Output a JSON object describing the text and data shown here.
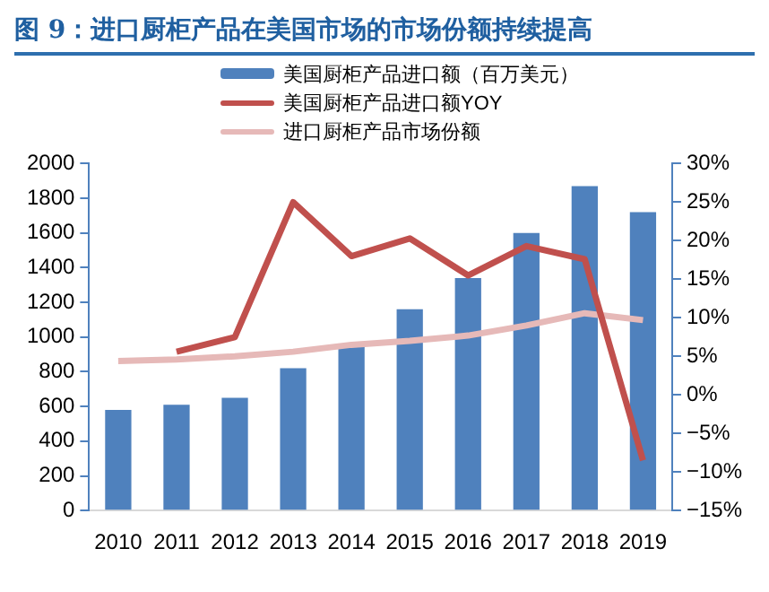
{
  "chart_data": {
    "type": "bar",
    "title": "图 9：进口厨柜产品在美国市场的市场份额持续提高",
    "categories": [
      "2010",
      "2011",
      "2012",
      "2013",
      "2014",
      "2015",
      "2016",
      "2017",
      "2018",
      "2019"
    ],
    "series": [
      {
        "name": "美国厨柜产品进口额（百万美元）",
        "color": "#4f81bd",
        "values": [
          580,
          610,
          650,
          820,
          950,
          1160,
          1340,
          1600,
          1870,
          1720
        ]
      },
      {
        "name": "美国厨柜产品进口额YOY",
        "type": "line",
        "axis": "y2",
        "color": "#c0504d",
        "values": [
          null,
          5.6,
          7.5,
          25,
          18,
          20.3,
          15.5,
          19.3,
          17.6,
          -8.5
        ]
      },
      {
        "name": "进口厨柜产品市场份额",
        "type": "line",
        "axis": "y2",
        "color": "#e6b9b8",
        "values": [
          4.4,
          4.6,
          5,
          5.6,
          6.5,
          7,
          7.7,
          9,
          10.6,
          9.7
        ]
      }
    ],
    "ylim": [
      0,
      2000
    ],
    "yticks": [
      0,
      200,
      400,
      600,
      800,
      1000,
      1200,
      1400,
      1600,
      1800,
      2000
    ],
    "y2lim": [
      -15,
      30
    ],
    "y2ticks": [
      {
        "value": -15,
        "label": "−15%"
      },
      {
        "value": -10,
        "label": "−10%"
      },
      {
        "value": -5,
        "label": "−5%"
      },
      {
        "value": 0,
        "label": "0%"
      },
      {
        "value": 5,
        "label": "5%"
      },
      {
        "value": 10,
        "label": "10%"
      },
      {
        "value": 15,
        "label": "15%"
      },
      {
        "value": 20,
        "label": "20%"
      },
      {
        "value": 25,
        "label": "25%"
      },
      {
        "value": 30,
        "label": "30%"
      }
    ],
    "grid": false,
    "legend": "top",
    "marker": "none",
    "line_style": "solid"
  }
}
